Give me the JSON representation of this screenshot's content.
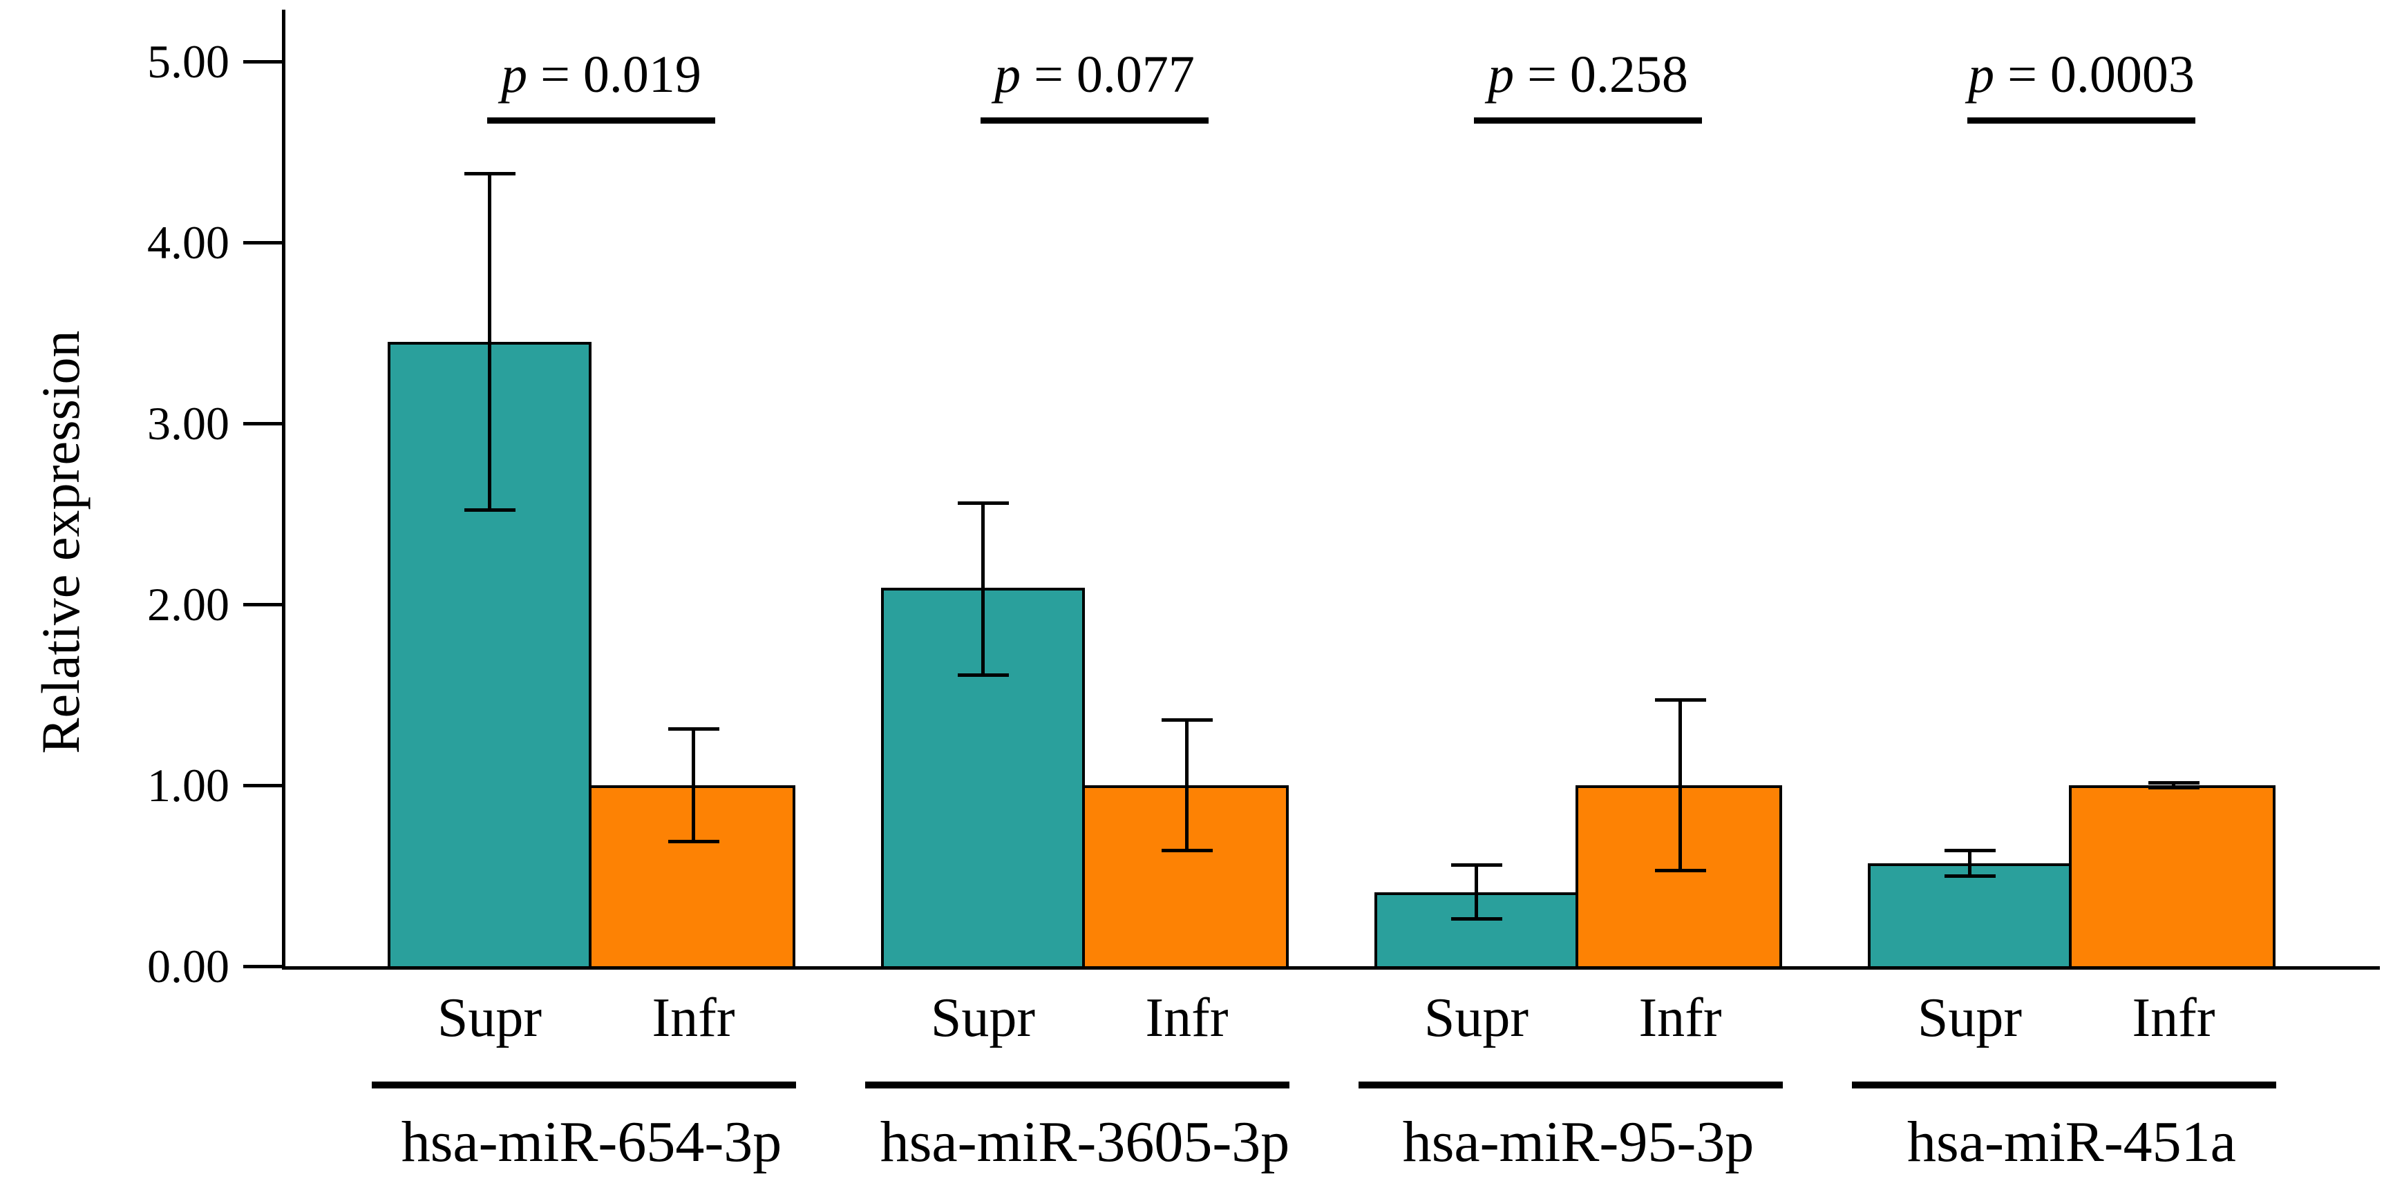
{
  "chart_data": {
    "type": "bar",
    "title": "",
    "ylabel": "Relative expression",
    "xlabel": "",
    "ylim": [
      0,
      5.4
    ],
    "grid": false,
    "legend": "none",
    "yticks": [
      {
        "label": "0.00",
        "value": 0
      },
      {
        "label": "1.00",
        "value": 1
      },
      {
        "label": "2.00",
        "value": 2
      },
      {
        "label": "3.00",
        "value": 3
      },
      {
        "label": "4.00",
        "value": 4
      },
      {
        "label": "5.00",
        "value": 5
      }
    ],
    "series_labels": [
      "Supr",
      "Infr"
    ],
    "colors": {
      "supr_fill": "#2aa09c",
      "infr_fill": "#fd8204",
      "axis": "#000000",
      "text": "#000000"
    },
    "p_prefix": "p",
    "groups": [
      {
        "name": "hsa-miR-654-3p",
        "p_label": "p = 0.019",
        "p_value": "0.019",
        "bars": [
          {
            "label": "Supr",
            "value": 3.45,
            "err_lo": 2.52,
            "err_hi": 4.38
          },
          {
            "label": "Infr",
            "value": 1.0,
            "err_lo": 0.69,
            "err_hi": 1.31
          }
        ]
      },
      {
        "name": "hsa-miR-3605-3p",
        "p_label": "p = 0.077",
        "p_value": "0.077",
        "bars": [
          {
            "label": "Supr",
            "value": 2.09,
            "err_lo": 1.61,
            "err_hi": 2.56
          },
          {
            "label": "Infr",
            "value": 1.0,
            "err_lo": 0.64,
            "err_hi": 1.36
          }
        ]
      },
      {
        "name": "hsa-miR-95-3p",
        "p_label": "p = 0.258",
        "p_value": "0.258",
        "bars": [
          {
            "label": "Supr",
            "value": 0.41,
            "err_lo": 0.26,
            "err_hi": 0.56
          },
          {
            "label": "Infr",
            "value": 1.0,
            "err_lo": 0.53,
            "err_hi": 1.47
          }
        ]
      },
      {
        "name": "hsa-miR-451a",
        "p_label": "p = 0.0003",
        "p_value": "0.0003",
        "bars": [
          {
            "label": "Supr",
            "value": 0.57,
            "err_lo": 0.5,
            "err_hi": 0.64
          },
          {
            "label": "Infr",
            "value": 1.0,
            "err_lo": 0.985,
            "err_hi": 1.015
          }
        ]
      }
    ]
  }
}
